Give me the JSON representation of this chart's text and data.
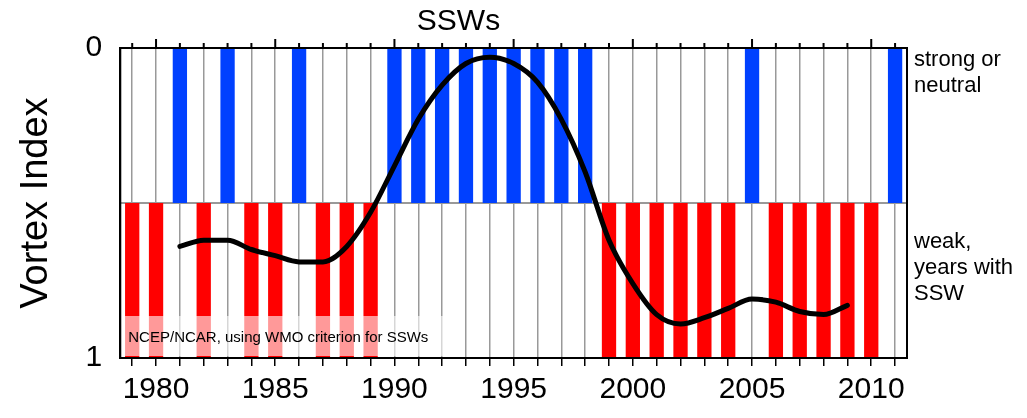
{
  "chart_data": {
    "type": "bar",
    "title": "SSWs",
    "ylabel": "Vortex Index",
    "categories": [
      null,
      "1980",
      null,
      null,
      null,
      null,
      "1985",
      null,
      null,
      null,
      null,
      "1990",
      null,
      null,
      null,
      null,
      "1995",
      null,
      null,
      null,
      null,
      "2000",
      null,
      null,
      null,
      null,
      "2005",
      null,
      null,
      null,
      null,
      "2010",
      null
    ],
    "series": [
      {
        "base": [
          0.5,
          0.5,
          0,
          0.5,
          0,
          0.5,
          0.5,
          0,
          0.5,
          0.5,
          0.5,
          0,
          0,
          0,
          0,
          0,
          0,
          0,
          0,
          0,
          0.5,
          0.5,
          0.5,
          0.5,
          0.5,
          0.5,
          0,
          0.5,
          0.5,
          0.5,
          0.5,
          0.5,
          0
        ],
        "values": [
          0.5,
          0.5,
          0.5,
          0.5,
          0.5,
          0.5,
          0.5,
          0.5,
          0.5,
          0.5,
          0.5,
          0.5,
          0.5,
          0.5,
          0.5,
          0.5,
          0.5,
          0.5,
          0.5,
          0.5,
          0.5,
          0.5,
          0.5,
          0.5,
          0.5,
          0.5,
          0.5,
          0.5,
          0.5,
          0.5,
          0.5,
          0.5,
          0.5
        ],
        "colors": [
          "#ff0000",
          "#ff0000",
          "#0040ff",
          "#ff0000",
          "#0040ff",
          "#ff0000",
          "#ff0000",
          "#0040ff",
          "#ff0000",
          "#ff0000",
          "#ff0000",
          "#0040ff",
          "#0040ff",
          "#0040ff",
          "#0040ff",
          "#0040ff",
          "#0040ff",
          "#0040ff",
          "#0040ff",
          "#0040ff",
          "#ff0000",
          "#ff0000",
          "#ff0000",
          "#ff0000",
          "#ff0000",
          "#ff0000",
          "#0040ff",
          "#ff0000",
          "#ff0000",
          "#ff0000",
          "#ff0000",
          "#ff0000",
          "#0040ff"
        ]
      },
      {
        "type": "line",
        "color": "#000000",
        "values": [
          null,
          null,
          0.64,
          0.62,
          0.62,
          0.65,
          0.67,
          0.69,
          0.69,
          0.64,
          0.53,
          0.38,
          0.23,
          0.12,
          0.05,
          0.03,
          0.05,
          0.11,
          0.23,
          0.4,
          0.62,
          0.76,
          0.86,
          0.89,
          0.87,
          0.84,
          0.81,
          0.82,
          0.85,
          0.86,
          0.83,
          null,
          null
        ]
      }
    ],
    "ylim": [
      1,
      0
    ],
    "yticks": [
      0,
      1
    ],
    "ref_lines": [
      {
        "axis": "y",
        "value": 0.5,
        "color": "#999999"
      }
    ],
    "annotations": [
      "strong or neutral",
      "weak, years with SSW",
      "NCEP/NCAR, using WMO criterion for SSWs"
    ],
    "grid": "x",
    "legend": false,
    "marker": "none",
    "line_style": "solid"
  }
}
